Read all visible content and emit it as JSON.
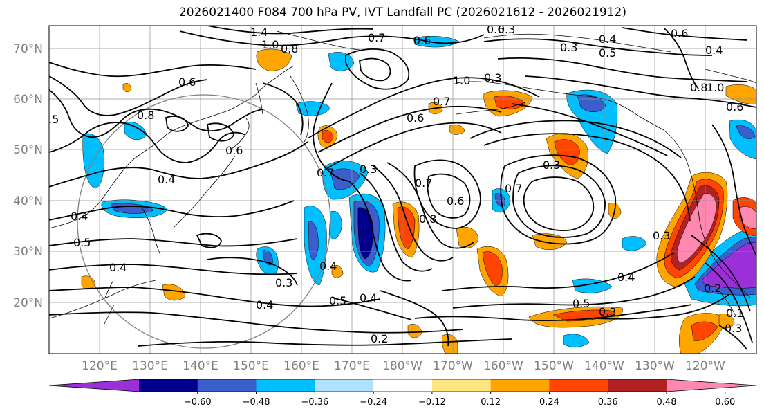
{
  "title": "2026021400 F084 700 hPa PV, IVT Landfall PC (2026021612 - 2026021912)",
  "lat_labels": [
    "70°N",
    "60°N",
    "50°N",
    "40°N",
    "30°N",
    "20°N"
  ],
  "lon_labels": [
    "120°E",
    "130°E",
    "140°E",
    "150°E",
    "160°E",
    "170°E",
    "180°W",
    "170°W",
    "160°W",
    "150°W",
    "140°W",
    "130°W",
    "120°W"
  ],
  "colorbar": {
    "tick_labels": [
      "−0.60",
      "−0.48",
      "−0.36",
      "−0.24",
      "−0.12",
      "0.12",
      "0.24",
      "0.36",
      "0.48",
      "0.60"
    ],
    "colors": [
      "#9b30d9",
      "#00008b",
      "#3a5fcd",
      "#00bfff",
      "#b0e2ff",
      "#ffffff",
      "#ffe680",
      "#ffa500",
      "#ff4500",
      "#b22222",
      "#ff88b0"
    ]
  },
  "contour_labels": [
    "1.4",
    "1.0",
    "0.8",
    "0.6",
    "0.8",
    "0.6",
    "0.4",
    "0.4",
    "0.5",
    "0.4",
    "0.3",
    "0.4",
    "0.7",
    "0.3",
    "0.4",
    "0.7",
    "0.6",
    "1.0",
    "0.7",
    "0.6",
    "0.5",
    "0.4",
    "0.7",
    "0.8",
    "0.6",
    "0.3",
    "0.7",
    "0.4",
    "0.5",
    "0.3",
    "0.3",
    "0.2",
    "0.4",
    "0.5",
    "0.3",
    "0.4",
    "0.8",
    "1.0",
    "0.6",
    "0.6",
    "0.3",
    "0.2",
    "0.3",
    "0.1",
    "0.5",
    "0.3",
    "0.6"
  ]
}
